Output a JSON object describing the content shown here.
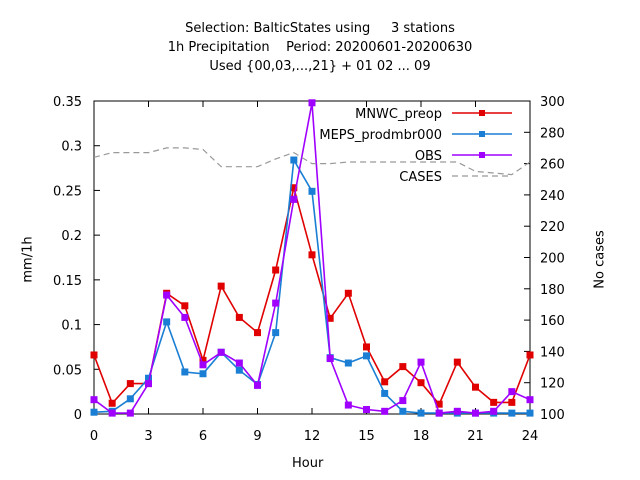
{
  "chart_data": {
    "type": "line",
    "title_lines": [
      "Selection: BalticStates using     3 stations",
      "1h Precipitation    Period: 20200601-20200630",
      "Used {00,03,...,21} + 01 02 ... 09"
    ],
    "xlabel": "Hour",
    "ylabel": "mm/1h",
    "y2label": "No cases",
    "xlim": [
      0,
      24
    ],
    "ylim": [
      0,
      0.35
    ],
    "y2lim": [
      100,
      300
    ],
    "xticks": [
      "0",
      "3",
      "6",
      "9",
      "12",
      "15",
      "18",
      "21",
      "24"
    ],
    "yticks": [
      "0",
      "0.05",
      "0.1",
      "0.15",
      "0.2",
      "0.25",
      "0.3",
      "0.35"
    ],
    "y2ticks": [
      "100",
      "120",
      "140",
      "160",
      "180",
      "200",
      "220",
      "240",
      "260",
      "280",
      "300"
    ],
    "grid": false,
    "legend_position": "top-right",
    "x": [
      0,
      1,
      2,
      3,
      4,
      5,
      6,
      7,
      8,
      9,
      10,
      11,
      12,
      13,
      14,
      15,
      16,
      17,
      18,
      19,
      20,
      21,
      22,
      23,
      24
    ],
    "series": [
      {
        "name": "MNWC_preop",
        "color": "#e00000",
        "marker": "square",
        "axis": "y1",
        "values": [
          0.066,
          0.012,
          0.034,
          0.034,
          0.135,
          0.121,
          0.06,
          0.143,
          0.108,
          0.091,
          0.161,
          0.253,
          0.178,
          0.107,
          0.135,
          0.075,
          0.036,
          0.053,
          0.035,
          0.011,
          0.058,
          0.03,
          0.013,
          0.013,
          0.066
        ]
      },
      {
        "name": "MEPS_prodmbr000",
        "color": "#1a7fd4",
        "marker": "square",
        "axis": "y1",
        "values": [
          0.002,
          0.003,
          0.017,
          0.04,
          0.103,
          0.047,
          0.045,
          0.069,
          0.049,
          0.033,
          0.091,
          0.284,
          0.249,
          0.063,
          0.057,
          0.065,
          0.023,
          0.003,
          0.001,
          0.001,
          0.001,
          0.001,
          0.001,
          0.001,
          0.001
        ]
      },
      {
        "name": "OBS",
        "color": "#a000ff",
        "marker": "square",
        "axis": "y1",
        "values": [
          0.016,
          0.001,
          0.001,
          0.034,
          0.133,
          0.108,
          0.055,
          0.069,
          0.057,
          0.032,
          0.124,
          0.24,
          0.348,
          0.062,
          0.01,
          0.005,
          0.003,
          0.015,
          0.058,
          0.001,
          0.003,
          0.001,
          0.003,
          0.025,
          0.016
        ]
      },
      {
        "name": "CASES",
        "color": "#999999",
        "marker": "none",
        "dashed": true,
        "axis": "y2",
        "values": [
          264,
          267,
          267,
          267,
          270,
          270,
          269,
          258,
          258,
          258,
          263,
          267,
          260,
          260,
          261,
          261,
          261,
          261,
          261,
          261,
          261,
          255,
          254,
          253,
          261
        ]
      }
    ]
  }
}
